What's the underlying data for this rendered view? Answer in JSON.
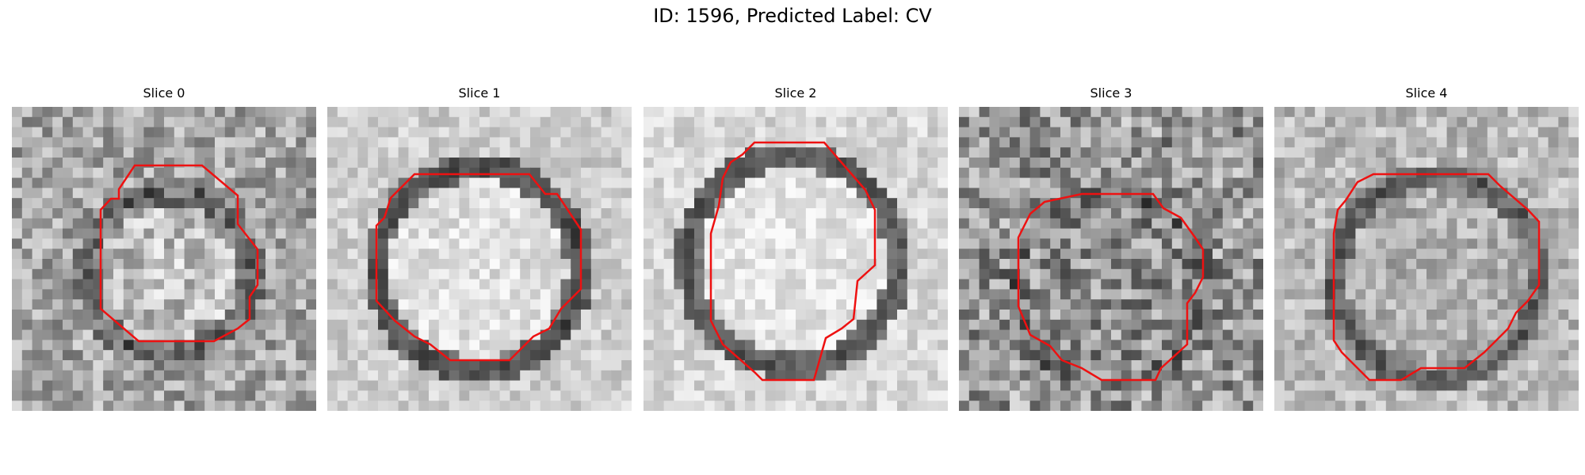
{
  "figure": {
    "title": "ID: 1596, Predicted Label: CV",
    "slices": [
      {
        "label": "Slice 0"
      },
      {
        "label": "Slice 1"
      },
      {
        "label": "Slice 2"
      },
      {
        "label": "Slice 3"
      },
      {
        "label": "Slice 4"
      }
    ]
  },
  "colors": {
    "background": "#ffffff",
    "contour": "#ee1111"
  }
}
